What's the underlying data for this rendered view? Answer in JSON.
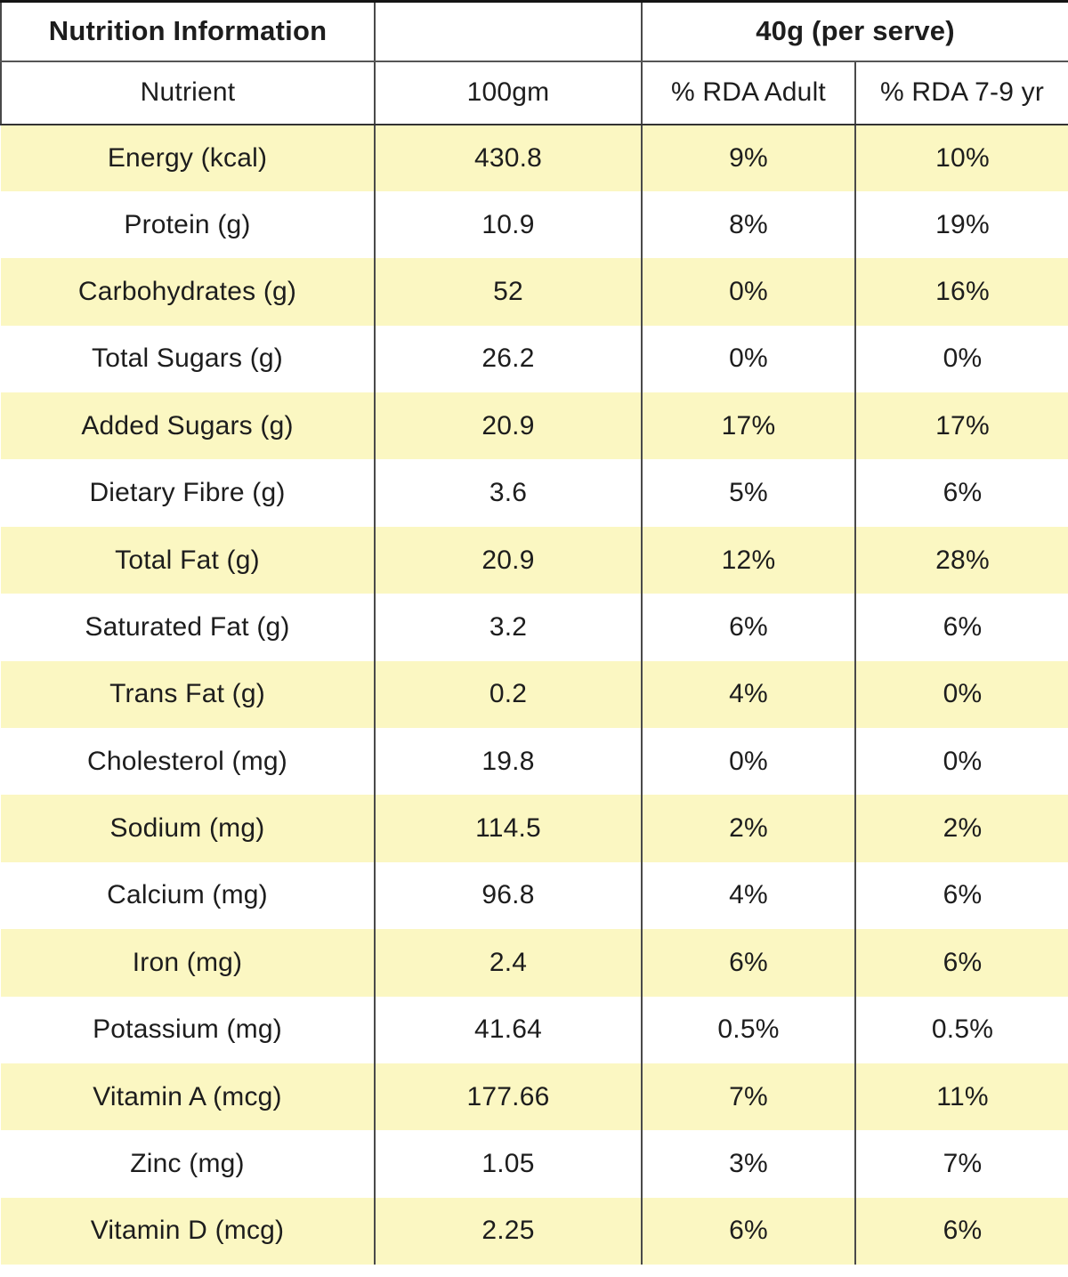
{
  "table": {
    "header": {
      "title": "Nutrition Information",
      "serve_label": "40g (per serve)"
    },
    "columns": {
      "nutrient": "Nutrient",
      "per_100g": "100gm",
      "rda_adult": "% RDA Adult",
      "rda_7_9": "% RDA 7-9 yr"
    },
    "rows": [
      {
        "nutrient": "Energy (kcal)",
        "per_100g": "430.8",
        "rda_adult": "9%",
        "rda_7_9": "10%"
      },
      {
        "nutrient": "Protein (g)",
        "per_100g": "10.9",
        "rda_adult": "8%",
        "rda_7_9": "19%"
      },
      {
        "nutrient": "Carbohydrates (g)",
        "per_100g": "52",
        "rda_adult": "0%",
        "rda_7_9": "16%"
      },
      {
        "nutrient": "Total Sugars (g)",
        "per_100g": "26.2",
        "rda_adult": "0%",
        "rda_7_9": "0%"
      },
      {
        "nutrient": "Added Sugars (g)",
        "per_100g": "20.9",
        "rda_adult": "17%",
        "rda_7_9": "17%"
      },
      {
        "nutrient": "Dietary Fibre (g)",
        "per_100g": "3.6",
        "rda_adult": "5%",
        "rda_7_9": "6%"
      },
      {
        "nutrient": "Total Fat (g)",
        "per_100g": "20.9",
        "rda_adult": "12%",
        "rda_7_9": "28%"
      },
      {
        "nutrient": "Saturated Fat (g)",
        "per_100g": "3.2",
        "rda_adult": "6%",
        "rda_7_9": "6%"
      },
      {
        "nutrient": "Trans Fat (g)",
        "per_100g": "0.2",
        "rda_adult": "4%",
        "rda_7_9": "0%"
      },
      {
        "nutrient": "Cholesterol (mg)",
        "per_100g": "19.8",
        "rda_adult": "0%",
        "rda_7_9": "0%"
      },
      {
        "nutrient": "Sodium (mg)",
        "per_100g": "114.5",
        "rda_adult": "2%",
        "rda_7_9": "2%"
      },
      {
        "nutrient": "Calcium (mg)",
        "per_100g": "96.8",
        "rda_adult": "4%",
        "rda_7_9": "6%"
      },
      {
        "nutrient": "Iron (mg)",
        "per_100g": "2.4",
        "rda_adult": "6%",
        "rda_7_9": "6%"
      },
      {
        "nutrient": "Potassium (mg)",
        "per_100g": "41.64",
        "rda_adult": "0.5%",
        "rda_7_9": "0.5%"
      },
      {
        "nutrient": "Vitamin A (mcg)",
        "per_100g": "177.66",
        "rda_adult": "7%",
        "rda_7_9": "11%"
      },
      {
        "nutrient": "Zinc (mg)",
        "per_100g": "1.05",
        "rda_adult": "3%",
        "rda_7_9": "7%"
      },
      {
        "nutrient": "Vitamin D (mcg)",
        "per_100g": "2.25",
        "rda_adult": "6%",
        "rda_7_9": "6%"
      }
    ],
    "colors": {
      "row_highlight": "#FBF7C2",
      "grid_line": "#4a4a4a",
      "outer_border": "#141414",
      "text": "#1d1d1d"
    }
  }
}
